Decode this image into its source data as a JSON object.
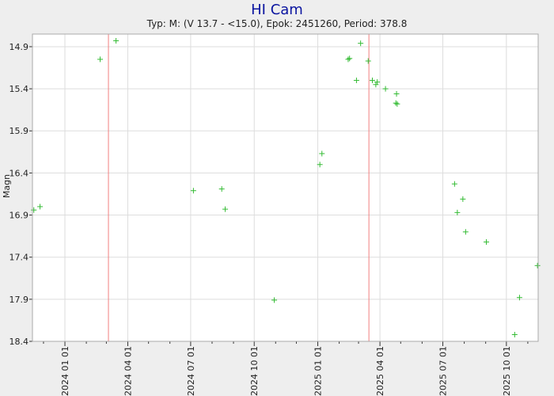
{
  "chart_data": {
    "type": "scatter",
    "title": "HI Cam",
    "subtitle": "Typ: M: (V 13.7 - <15.0), Epok: 2451260, Period: 378.8",
    "ylabel": "Magn",
    "xlabel": "",
    "y_inverted": true,
    "ylim": [
      18.4,
      14.75
    ],
    "y_ticks": [
      14.9,
      15.4,
      15.9,
      16.4,
      16.9,
      17.4,
      17.9,
      18.4
    ],
    "y_tick_labels": [
      "14.9",
      "15.4",
      "15.9",
      "16.4",
      "16.9",
      "17.4",
      "17.9",
      "18.4"
    ],
    "xlim": [
      "2023-11-15",
      "2025-11-16"
    ],
    "x_ticks": [
      "2024-01-01",
      "2024-04-01",
      "2024-07-01",
      "2024-10-01",
      "2025-01-01",
      "2025-04-01",
      "2025-07-01",
      "2025-10-01"
    ],
    "x_tick_labels": [
      "2024 01 01",
      "2024 04 01",
      "2024 07 01",
      "2024 10 01",
      "2025 01 01",
      "2025 04 01",
      "2025 07 01",
      "2025 10 01"
    ],
    "x_minor_ticks": [
      "2023-12-01",
      "2024-02-01",
      "2024-03-01",
      "2024-05-01",
      "2024-06-01",
      "2024-08-01",
      "2024-09-01",
      "2024-11-01",
      "2024-12-01",
      "2025-02-01",
      "2025-03-01",
      "2025-05-01",
      "2025-06-01",
      "2025-08-01",
      "2025-09-01",
      "2025-11-01"
    ],
    "grid": true,
    "maxima_lines": [
      "2024-03-04",
      "2025-03-16"
    ],
    "colors": {
      "points": "#33bb33",
      "maxima": "#f08080",
      "grid": "#dddddd",
      "title": "#0a14a0",
      "plot_bg": "#ffffff",
      "page_bg": "#eeeeee"
    },
    "points": [
      {
        "x": "2023-11-17",
        "y": 16.84
      },
      {
        "x": "2023-11-26",
        "y": 16.8
      },
      {
        "x": "2024-02-21",
        "y": 15.05
      },
      {
        "x": "2024-03-15",
        "y": 14.83
      },
      {
        "x": "2024-07-05",
        "y": 16.61
      },
      {
        "x": "2024-08-15",
        "y": 16.59
      },
      {
        "x": "2024-08-20",
        "y": 16.83
      },
      {
        "x": "2024-10-30",
        "y": 17.91
      },
      {
        "x": "2025-01-04",
        "y": 16.3
      },
      {
        "x": "2025-01-07",
        "y": 16.17
      },
      {
        "x": "2025-02-14",
        "y": 15.05
      },
      {
        "x": "2025-02-16",
        "y": 15.04
      },
      {
        "x": "2025-02-26",
        "y": 15.3
      },
      {
        "x": "2025-03-04",
        "y": 14.86
      },
      {
        "x": "2025-03-15",
        "y": 15.07
      },
      {
        "x": "2025-03-21",
        "y": 15.3
      },
      {
        "x": "2025-03-26",
        "y": 15.35
      },
      {
        "x": "2025-03-28",
        "y": 15.32
      },
      {
        "x": "2025-04-09",
        "y": 15.4
      },
      {
        "x": "2025-04-24",
        "y": 15.57
      },
      {
        "x": "2025-04-26",
        "y": 15.58
      },
      {
        "x": "2025-04-25",
        "y": 15.46
      },
      {
        "x": "2025-07-18",
        "y": 16.53
      },
      {
        "x": "2025-07-22",
        "y": 16.87
      },
      {
        "x": "2025-07-30",
        "y": 16.71
      },
      {
        "x": "2025-08-03",
        "y": 17.1
      },
      {
        "x": "2025-09-02",
        "y": 17.22
      },
      {
        "x": "2025-10-13",
        "y": 18.32
      },
      {
        "x": "2025-10-20",
        "y": 17.88
      },
      {
        "x": "2025-11-15",
        "y": 17.5
      }
    ]
  }
}
